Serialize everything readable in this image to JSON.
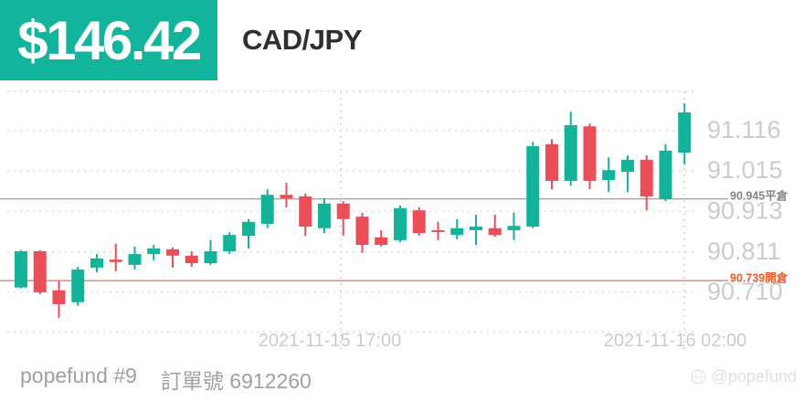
{
  "header": {
    "price_badge": "$146.42",
    "symbol": "CAD/JPY",
    "badge_color": "#12b49c"
  },
  "chart_data": {
    "type": "candlestick",
    "symbol": "CAD/JPY",
    "ylim": [
      90.611,
      91.215
    ],
    "grid": true,
    "up_color": "#13b39a",
    "down_color": "#ea4e58",
    "grid_color": "#e2e2e2",
    "axis_text_color": "#c9ccd0",
    "y_axis_labels": [
      {
        "text": "91.116",
        "price": 91.116
      },
      {
        "text": "91.015",
        "price": 91.015
      },
      {
        "text": "90.913",
        "price": 90.913
      },
      {
        "text": "90.811",
        "price": 90.811
      },
      {
        "text": "90.710",
        "price": 90.71
      }
    ],
    "grid_prices": [
      91.215,
      91.116,
      91.015,
      90.913,
      90.811,
      90.71,
      90.61
    ],
    "v_grid_x": [
      373,
      749
    ],
    "x_axis_labels": [
      {
        "text": "2021-11-15 17:00",
        "x": 361
      },
      {
        "text": "2021-11-16 02:00",
        "x": 739
      }
    ],
    "position_lines": [
      {
        "name": "close",
        "price": 90.945,
        "label": "90.945平倉",
        "line_color": "#a8a8a8",
        "text_color": "#858585"
      },
      {
        "name": "open",
        "price": 90.739,
        "label": "90.739開倉",
        "line_color": "#f28672",
        "text_color": "#ee5a2b"
      }
    ],
    "candles": [
      {
        "o": 90.722,
        "h": 90.816,
        "l": 90.72,
        "c": 90.813
      },
      {
        "o": 90.813,
        "h": 90.816,
        "l": 90.705,
        "c": 90.71
      },
      {
        "o": 90.715,
        "h": 90.74,
        "l": 90.646,
        "c": 90.68
      },
      {
        "o": 90.685,
        "h": 90.774,
        "l": 90.676,
        "c": 90.767
      },
      {
        "o": 90.772,
        "h": 90.806,
        "l": 90.76,
        "c": 90.795
      },
      {
        "o": 90.792,
        "h": 90.832,
        "l": 90.763,
        "c": 90.786
      },
      {
        "o": 90.779,
        "h": 90.825,
        "l": 90.767,
        "c": 90.806
      },
      {
        "o": 90.806,
        "h": 90.829,
        "l": 90.79,
        "c": 90.82
      },
      {
        "o": 90.818,
        "h": 90.823,
        "l": 90.772,
        "c": 90.802
      },
      {
        "o": 90.802,
        "h": 90.813,
        "l": 90.774,
        "c": 90.783
      },
      {
        "o": 90.783,
        "h": 90.841,
        "l": 90.779,
        "c": 90.813
      },
      {
        "o": 90.813,
        "h": 90.861,
        "l": 90.806,
        "c": 90.854
      },
      {
        "o": 90.852,
        "h": 90.894,
        "l": 90.82,
        "c": 90.887
      },
      {
        "o": 90.882,
        "h": 90.969,
        "l": 90.871,
        "c": 90.955
      },
      {
        "o": 90.955,
        "h": 90.985,
        "l": 90.923,
        "c": 90.946
      },
      {
        "o": 90.951,
        "h": 90.958,
        "l": 90.852,
        "c": 90.875
      },
      {
        "o": 90.871,
        "h": 90.946,
        "l": 90.859,
        "c": 90.933
      },
      {
        "o": 90.933,
        "h": 90.939,
        "l": 90.852,
        "c": 90.894
      },
      {
        "o": 90.9,
        "h": 90.91,
        "l": 90.809,
        "c": 90.829
      },
      {
        "o": 90.848,
        "h": 90.866,
        "l": 90.825,
        "c": 90.829
      },
      {
        "o": 90.841,
        "h": 90.928,
        "l": 90.836,
        "c": 90.921
      },
      {
        "o": 90.916,
        "h": 90.923,
        "l": 90.852,
        "c": 90.859
      },
      {
        "o": 90.866,
        "h": 90.887,
        "l": 90.841,
        "c": 90.862
      },
      {
        "o": 90.854,
        "h": 90.894,
        "l": 90.843,
        "c": 90.871
      },
      {
        "o": 90.866,
        "h": 90.905,
        "l": 90.829,
        "c": 90.875
      },
      {
        "o": 90.871,
        "h": 90.905,
        "l": 90.85,
        "c": 90.854
      },
      {
        "o": 90.866,
        "h": 90.91,
        "l": 90.841,
        "c": 90.877
      },
      {
        "o": 90.875,
        "h": 91.088,
        "l": 90.871,
        "c": 91.077
      },
      {
        "o": 91.082,
        "h": 91.095,
        "l": 90.969,
        "c": 90.99
      },
      {
        "o": 90.99,
        "h": 91.164,
        "l": 90.978,
        "c": 91.13
      },
      {
        "o": 91.127,
        "h": 91.134,
        "l": 90.969,
        "c": 90.99
      },
      {
        "o": 90.992,
        "h": 91.049,
        "l": 90.962,
        "c": 91.017
      },
      {
        "o": 91.013,
        "h": 91.054,
        "l": 90.962,
        "c": 91.043
      },
      {
        "o": 91.043,
        "h": 91.054,
        "l": 90.916,
        "c": 90.951
      },
      {
        "o": 90.944,
        "h": 91.082,
        "l": 90.939,
        "c": 91.066
      },
      {
        "o": 91.061,
        "h": 91.185,
        "l": 91.031,
        "c": 91.162
      }
    ]
  },
  "footer": {
    "account": "popefund #9",
    "order": "訂單號 6912260",
    "watermark": "@popefund"
  }
}
